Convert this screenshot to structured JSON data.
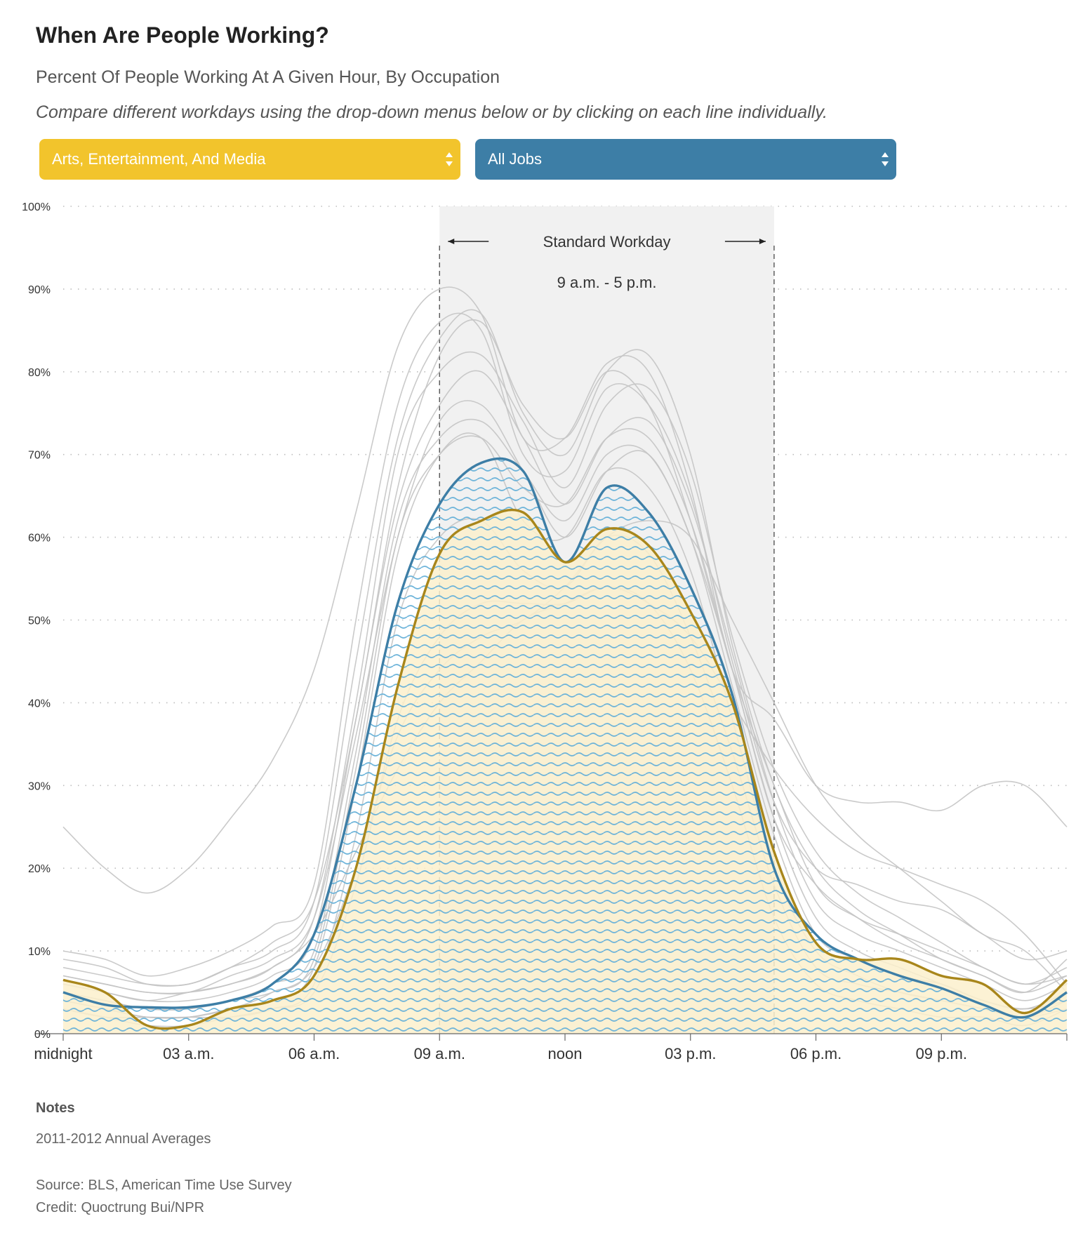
{
  "header": {
    "title": "When Are People Working?",
    "subtitle": "Percent Of People Working At A Given Hour, By Occupation",
    "instruction": "Compare different workdays using the drop-down menus below or by clicking on each line individually."
  },
  "controls": {
    "occupation_a": {
      "selected": "Arts, Entertainment, And Media",
      "color": "#f2c42c"
    },
    "occupation_b": {
      "selected": "All Jobs",
      "color": "#3d7ea6"
    }
  },
  "annotation": {
    "label": "Standard Workday",
    "range": "9 a.m. - 5 p.m.",
    "start_hour": 9,
    "end_hour": 17
  },
  "chart_data": {
    "type": "line",
    "xlabel": "",
    "ylabel": "",
    "xlim": [
      0,
      24
    ],
    "ylim": [
      0,
      100
    ],
    "grid": true,
    "x_ticks": [
      {
        "hour": 0,
        "label": "midnight"
      },
      {
        "hour": 3,
        "label": "03 a.m."
      },
      {
        "hour": 6,
        "label": "06 a.m."
      },
      {
        "hour": 9,
        "label": "09 a.m."
      },
      {
        "hour": 12,
        "label": "noon"
      },
      {
        "hour": 15,
        "label": "03 p.m."
      },
      {
        "hour": 18,
        "label": "06 p.m."
      },
      {
        "hour": 21,
        "label": "09 p.m."
      }
    ],
    "y_ticks": [
      0,
      10,
      20,
      30,
      40,
      50,
      60,
      70,
      80,
      90,
      100
    ],
    "x": [
      0,
      1,
      2,
      3,
      4,
      5,
      6,
      7,
      8,
      9,
      10,
      11,
      12,
      13,
      14,
      15,
      16,
      17,
      18,
      19,
      20,
      21,
      22,
      23,
      24
    ],
    "highlighted": [
      {
        "name": "Arts, Entertainment, And Media",
        "color": "#a8861b",
        "fill": "#fbf0cd",
        "values": [
          6.5,
          5,
          1,
          1,
          3,
          4,
          7,
          20,
          42,
          58,
          62,
          63,
          57,
          61,
          59,
          51,
          40,
          22,
          11,
          9,
          9,
          7,
          6,
          2.5,
          6.5
        ]
      },
      {
        "name": "All Jobs",
        "color": "#3d7ea6",
        "values": [
          5,
          3.5,
          3.2,
          3.2,
          4,
          6,
          12,
          30,
          52,
          64,
          69,
          68,
          57,
          66,
          63,
          54,
          41,
          20,
          12,
          9,
          7,
          5.5,
          3.5,
          2,
          5
        ]
      }
    ],
    "background_series": [
      {
        "values": [
          25,
          20,
          17,
          20,
          26,
          33,
          44,
          63,
          83,
          90,
          87,
          72,
          72,
          81,
          80,
          66,
          44,
          38,
          30,
          28,
          28,
          27,
          30,
          30,
          25
        ]
      },
      {
        "values": [
          10,
          9,
          7,
          8,
          10,
          13,
          18,
          50,
          76,
          86,
          85,
          70,
          68,
          78,
          76,
          65,
          45,
          28,
          20,
          18,
          16,
          15,
          12,
          9,
          10
        ]
      },
      {
        "values": [
          9,
          8,
          6,
          6,
          8,
          10,
          16,
          45,
          72,
          84,
          87,
          75,
          70,
          80,
          82,
          70,
          47,
          30,
          20,
          15,
          12,
          9,
          7,
          5,
          9
        ]
      },
      {
        "values": [
          7,
          6,
          5,
          5,
          6,
          8,
          14,
          40,
          70,
          80,
          82,
          74,
          66,
          76,
          78,
          68,
          48,
          32,
          22,
          17,
          14,
          11,
          8,
          6,
          7
        ]
      },
      {
        "values": [
          6,
          5,
          4,
          4,
          5,
          7,
          12,
          38,
          64,
          76,
          80,
          72,
          64,
          72,
          74,
          64,
          46,
          28,
          16,
          12,
          10,
          8,
          6,
          4,
          6
        ]
      },
      {
        "values": [
          5,
          4,
          3,
          3,
          4,
          6,
          10,
          34,
          62,
          72,
          74,
          68,
          62,
          70,
          70,
          60,
          42,
          24,
          12,
          9,
          7,
          6,
          4,
          3,
          5
        ]
      },
      {
        "values": [
          4,
          3,
          2,
          2,
          3,
          5,
          9,
          32,
          60,
          70,
          72,
          66,
          64,
          72,
          72,
          62,
          44,
          26,
          14,
          10,
          8,
          6,
          4,
          3,
          4
        ]
      },
      {
        "values": [
          4,
          3,
          2,
          2,
          2,
          3,
          6,
          24,
          50,
          60,
          62,
          56,
          54,
          60,
          58,
          48,
          34,
          18,
          8,
          6,
          5,
          4,
          3,
          2,
          4
        ]
      },
      {
        "values": [
          3,
          2,
          1,
          1,
          2,
          3,
          5,
          18,
          38,
          48,
          52,
          52,
          52,
          54,
          52,
          44,
          30,
          14,
          6,
          4,
          3,
          2,
          2,
          1,
          3
        ]
      },
      {
        "values": [
          6,
          5,
          4,
          5,
          6,
          8,
          12,
          22,
          32,
          40,
          45,
          50,
          52,
          54,
          52,
          48,
          40,
          32,
          26,
          22,
          20,
          18,
          16,
          12,
          6
        ]
      },
      {
        "values": [
          5,
          4,
          3,
          3,
          4,
          5,
          8,
          20,
          36,
          44,
          48,
          50,
          54,
          60,
          62,
          60,
          50,
          40,
          30,
          24,
          20,
          16,
          12,
          10,
          5
        ]
      },
      {
        "values": [
          8,
          7,
          6,
          6,
          8,
          11,
          16,
          38,
          66,
          82,
          86,
          76,
          72,
          80,
          76,
          62,
          44,
          30,
          18,
          14,
          12,
          10,
          8,
          6,
          8
        ]
      },
      {
        "values": [
          3,
          2,
          2,
          2,
          3,
          4,
          8,
          30,
          58,
          70,
          72,
          62,
          60,
          68,
          66,
          56,
          38,
          20,
          10,
          7,
          5,
          4,
          3,
          2,
          3
        ]
      },
      {
        "values": [
          7,
          6,
          5,
          5,
          7,
          9,
          14,
          36,
          60,
          74,
          76,
          68,
          60,
          68,
          70,
          60,
          44,
          26,
          18,
          14,
          11,
          9,
          7,
          5,
          7
        ]
      }
    ]
  },
  "footer": {
    "notes_heading": "Notes",
    "notes_text": "2011-2012 Annual Averages",
    "source": "Source: BLS, American Time Use Survey",
    "credit": "Credit: Quoctrung Bui/NPR"
  }
}
